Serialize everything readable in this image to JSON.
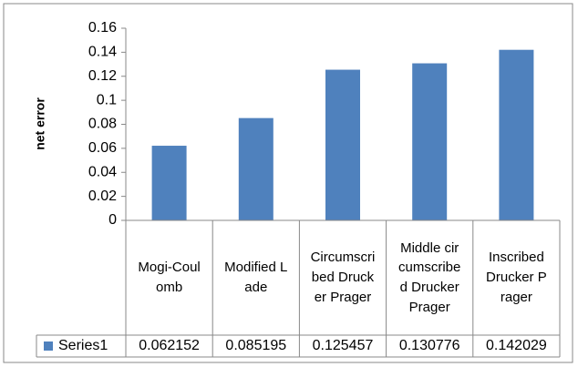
{
  "chart_data": {
    "type": "bar",
    "y_label": "net error",
    "categories": [
      "Mogi-Coulomb",
      "Modified Lade",
      "Circumscribed Drucker Prager",
      "Middle circumscribed Drucker Prager",
      "Inscribed Drucker Prager"
    ],
    "series": [
      {
        "name": "Series1",
        "color": "#4f81bd",
        "values": [
          0.062152,
          0.085195,
          0.125457,
          0.130776,
          0.142029
        ]
      }
    ],
    "ylim": [
      0,
      0.16
    ],
    "yticks": [
      0,
      0.02,
      0.04,
      0.06,
      0.08,
      0.1,
      0.12,
      0.14,
      0.16
    ],
    "data_table": true
  }
}
